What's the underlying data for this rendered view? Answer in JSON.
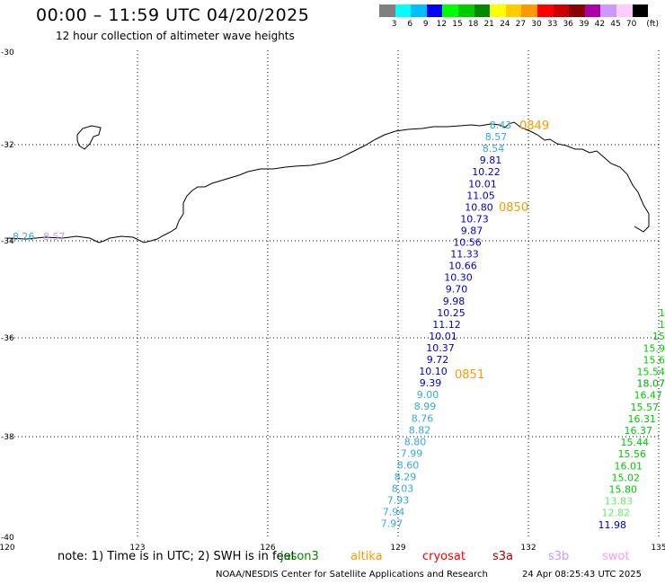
{
  "title": "00:00 – 11:59 UTC 04/20/2025",
  "subtitle": "12 hour collection of altimeter wave heights",
  "legend": {
    "colors": [
      "#808080",
      "#00ffff",
      "#00bfff",
      "#0000ff",
      "#00ff00",
      "#00cc00",
      "#008800",
      "#ffff00",
      "#ffcc00",
      "#ff9900",
      "#ff0000",
      "#cc0000",
      "#880000",
      "#aa00aa",
      "#cc99ff",
      "#ffccff",
      "#000000"
    ],
    "labels": [
      "3",
      "6",
      "9",
      "12",
      "15",
      "18",
      "21",
      "24",
      "27",
      "30",
      "33",
      "36",
      "39",
      "42",
      "45",
      "70",
      "(ft)"
    ]
  },
  "axes": {
    "lat_labels": [
      "-30",
      "-32",
      "-34",
      "-36",
      "-38",
      "-40"
    ],
    "lon_labels": [
      "120",
      "123",
      "126",
      "129",
      "132",
      "135"
    ]
  },
  "track_points": [
    {
      "v": "8.43",
      "c": "#33aadd"
    },
    {
      "v": "8.57",
      "c": "#33aadd"
    },
    {
      "v": "8.54",
      "c": "#33aadd"
    },
    {
      "v": "9.81",
      "c": "#0000cc"
    },
    {
      "v": "10.22",
      "c": "#0000cc"
    },
    {
      "v": "10.01",
      "c": "#0000cc"
    },
    {
      "v": "11.05",
      "c": "#0000cc"
    },
    {
      "v": "10.80",
      "c": "#0000cc"
    },
    {
      "v": "10.73",
      "c": "#0000cc"
    },
    {
      "v": "9.87",
      "c": "#0000cc"
    },
    {
      "v": "10.56",
      "c": "#0000cc"
    },
    {
      "v": "11.33",
      "c": "#0000cc"
    },
    {
      "v": "10.66",
      "c": "#0000cc"
    },
    {
      "v": "10.30",
      "c": "#0000cc"
    },
    {
      "v": "9.70",
      "c": "#0000cc"
    },
    {
      "v": "9.98",
      "c": "#0000cc"
    },
    {
      "v": "10.25",
      "c": "#0000cc"
    },
    {
      "v": "11.12",
      "c": "#0000cc"
    },
    {
      "v": "10.01",
      "c": "#0000cc"
    },
    {
      "v": "10.37",
      "c": "#0000cc"
    },
    {
      "v": "9.72",
      "c": "#0000cc"
    },
    {
      "v": "10.10",
      "c": "#0000cc"
    },
    {
      "v": "9.39",
      "c": "#0000cc"
    },
    {
      "v": "9.00",
      "c": "#33aadd"
    },
    {
      "v": "8.99",
      "c": "#33aadd"
    },
    {
      "v": "8.76",
      "c": "#33aadd"
    },
    {
      "v": "8.82",
      "c": "#33aadd"
    },
    {
      "v": "8.80",
      "c": "#33aadd"
    },
    {
      "v": "7.99",
      "c": "#33aadd"
    },
    {
      "v": "8.60",
      "c": "#33aadd"
    },
    {
      "v": "8.29",
      "c": "#33aadd"
    },
    {
      "v": "8.03",
      "c": "#33aadd"
    },
    {
      "v": "7.93",
      "c": "#33aadd"
    },
    {
      "v": "7.94",
      "c": "#33aadd"
    },
    {
      "v": "7.97",
      "c": "#33aadd"
    }
  ],
  "time_labels": [
    "0849",
    "0850",
    "0851"
  ],
  "west_points": [
    {
      "v": "8.26",
      "c": "#33aadd"
    },
    {
      "v": "8.57",
      "c": "#cc99ff"
    }
  ],
  "east_points": [
    {
      "v": "1",
      "c": "#00cc00"
    },
    {
      "v": "1",
      "c": "#00cc00"
    },
    {
      "v": "15",
      "c": "#00cc00"
    },
    {
      "v": "15.9",
      "c": "#00cc00"
    },
    {
      "v": "15.6",
      "c": "#00cc00"
    },
    {
      "v": "15.54",
      "c": "#00cc00"
    },
    {
      "v": "18.07",
      "c": "#00aa00"
    },
    {
      "v": "16.47",
      "c": "#00cc00"
    },
    {
      "v": "15.57",
      "c": "#00cc00"
    },
    {
      "v": "16.31",
      "c": "#00cc00"
    },
    {
      "v": "16.37",
      "c": "#00cc00"
    },
    {
      "v": "15.44",
      "c": "#00cc00"
    },
    {
      "v": "15.56",
      "c": "#00cc00"
    },
    {
      "v": "16.01",
      "c": "#00cc00"
    },
    {
      "v": "15.02",
      "c": "#00cc00"
    },
    {
      "v": "15.80",
      "c": "#00cc00"
    },
    {
      "v": "13.83",
      "c": "#66ee66"
    },
    {
      "v": "12.82",
      "c": "#66ee66"
    },
    {
      "v": "11.98",
      "c": "#0000cc"
    }
  ],
  "note": "note:  1) Time is in UTC;  2) SWH is in feet",
  "satellites": [
    {
      "name": "jason3",
      "c": "#008800"
    },
    {
      "name": "altika",
      "c": "#ff9900"
    },
    {
      "name": "cryosat",
      "c": "#ff0000"
    },
    {
      "name": "s3a",
      "c": "#aa0000"
    },
    {
      "name": "s3b",
      "c": "#cc99ff"
    },
    {
      "name": "swot",
      "c": "#ff99ee"
    }
  ],
  "footer": {
    "left": "NOAA/NESDIS Center for Satellite Applications and Research",
    "right": "24 Apr 08:25:43 UTC 2025"
  }
}
